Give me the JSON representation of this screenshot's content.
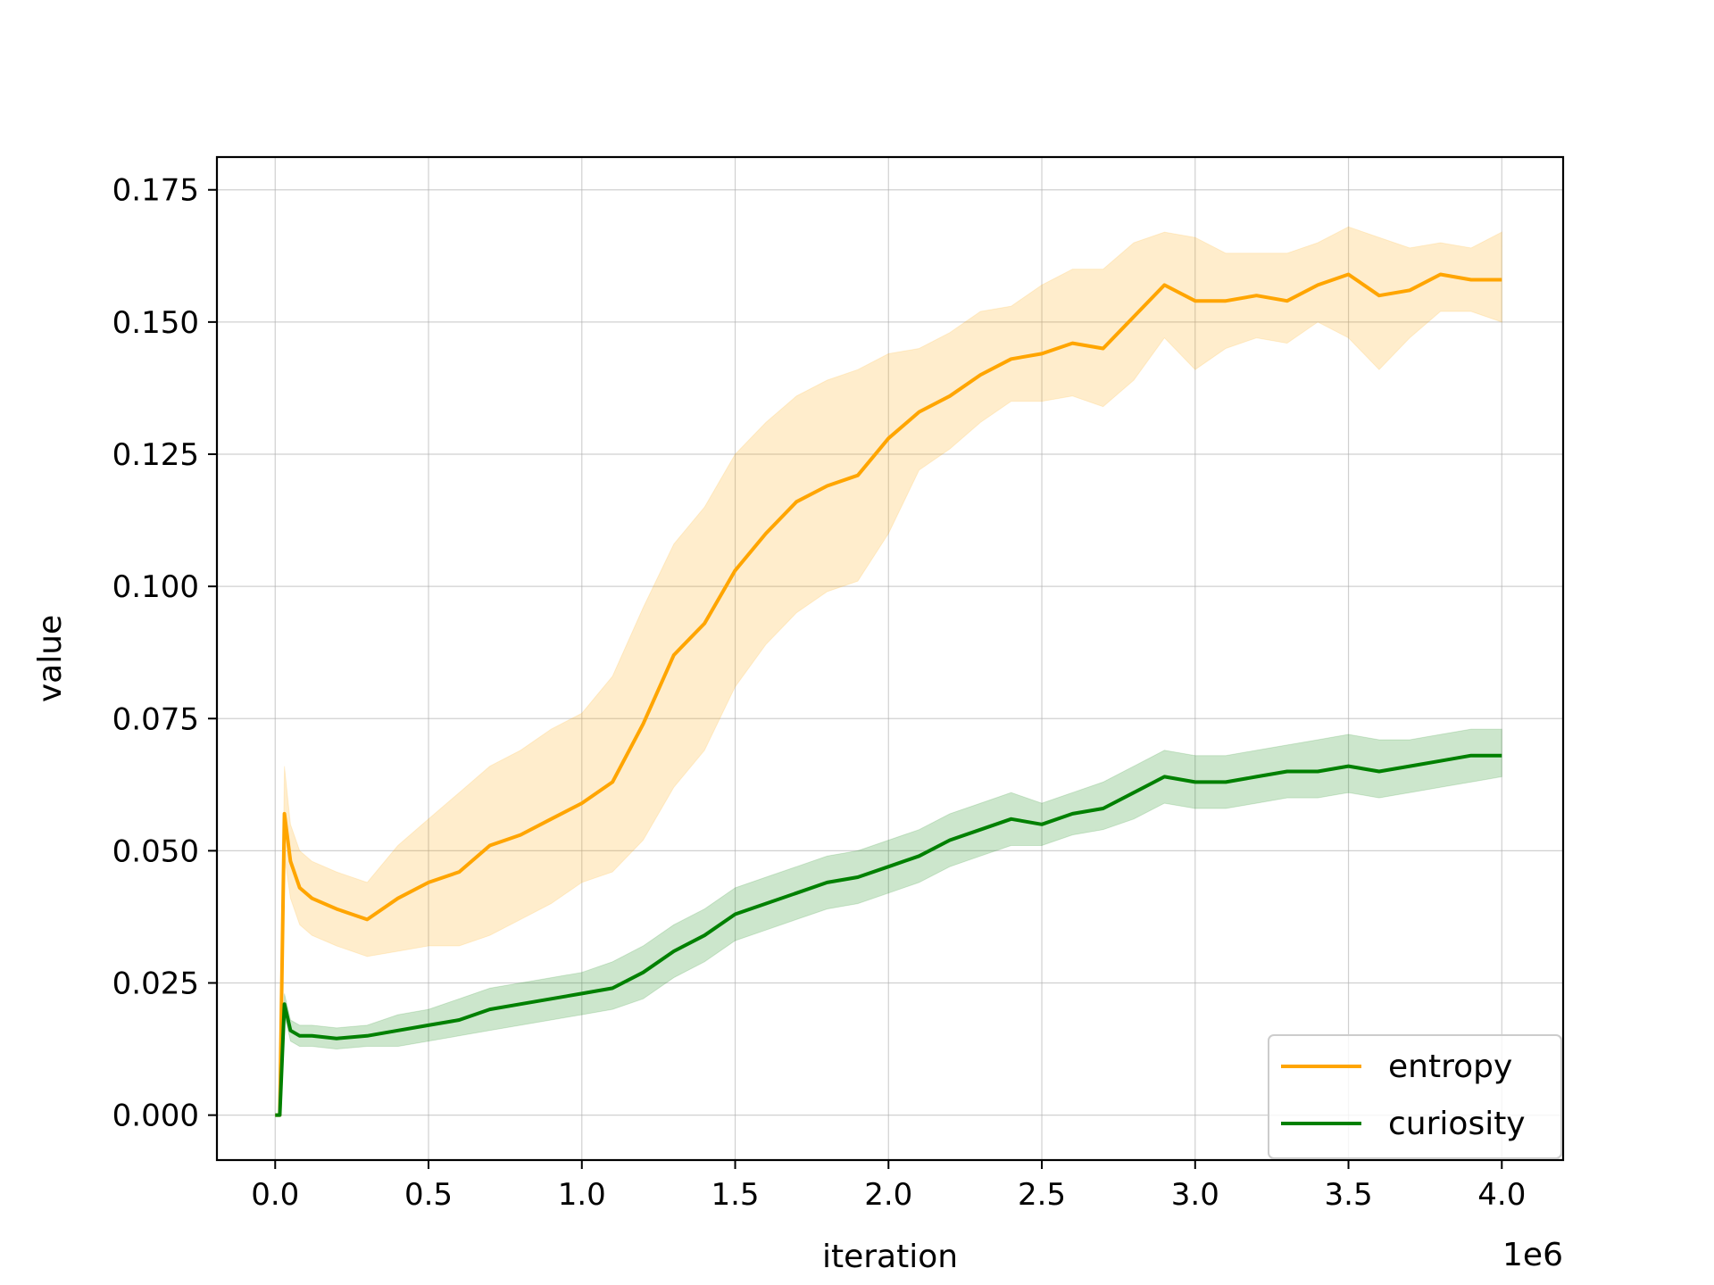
{
  "chart_data": {
    "type": "line",
    "title": "",
    "xlabel": "iteration",
    "ylabel": "value",
    "x_offset_label": "1e6",
    "xlim": [
      -0.19,
      4.2
    ],
    "ylim": [
      -0.0085,
      0.1812
    ],
    "xticks": [
      0.0,
      0.5,
      1.0,
      1.5,
      2.0,
      2.5,
      3.0,
      3.5,
      4.0
    ],
    "xtick_labels": [
      "0.0",
      "0.5",
      "1.0",
      "1.5",
      "2.0",
      "2.5",
      "3.0",
      "3.5",
      "4.0"
    ],
    "yticks": [
      0.0,
      0.025,
      0.05,
      0.075,
      0.1,
      0.125,
      0.15,
      0.175
    ],
    "ytick_labels": [
      "0.000",
      "0.025",
      "0.050",
      "0.075",
      "0.100",
      "0.125",
      "0.150",
      "0.175"
    ],
    "grid": true,
    "legend_position": "lower-right",
    "series": [
      {
        "name": "entropy",
        "color": "#ffa500",
        "band_color": "#ffa500",
        "x": [
          0.0,
          0.015,
          0.03,
          0.05,
          0.08,
          0.12,
          0.2,
          0.3,
          0.4,
          0.5,
          0.6,
          0.7,
          0.8,
          0.9,
          1.0,
          1.1,
          1.2,
          1.3,
          1.4,
          1.5,
          1.6,
          1.7,
          1.8,
          1.9,
          2.0,
          2.1,
          2.2,
          2.3,
          2.4,
          2.5,
          2.6,
          2.7,
          2.8,
          2.9,
          3.0,
          3.1,
          3.2,
          3.3,
          3.4,
          3.5,
          3.6,
          3.7,
          3.8,
          3.9,
          4.0
        ],
        "mean": [
          0.0,
          0.0,
          0.057,
          0.048,
          0.043,
          0.041,
          0.039,
          0.037,
          0.041,
          0.044,
          0.046,
          0.051,
          0.053,
          0.056,
          0.059,
          0.063,
          0.074,
          0.087,
          0.093,
          0.103,
          0.11,
          0.116,
          0.119,
          0.121,
          0.128,
          0.133,
          0.136,
          0.14,
          0.143,
          0.144,
          0.146,
          0.145,
          0.151,
          0.157,
          0.154,
          0.154,
          0.155,
          0.154,
          0.157,
          0.159,
          0.155,
          0.156,
          0.159,
          0.158,
          0.158
        ],
        "upper": [
          0.0,
          0.0,
          0.066,
          0.055,
          0.05,
          0.048,
          0.046,
          0.044,
          0.051,
          0.056,
          0.061,
          0.066,
          0.069,
          0.073,
          0.076,
          0.083,
          0.096,
          0.108,
          0.115,
          0.125,
          0.131,
          0.136,
          0.139,
          0.141,
          0.144,
          0.145,
          0.148,
          0.152,
          0.153,
          0.157,
          0.16,
          0.16,
          0.165,
          0.167,
          0.166,
          0.163,
          0.163,
          0.163,
          0.165,
          0.168,
          0.166,
          0.164,
          0.165,
          0.164,
          0.167
        ],
        "lower": [
          0.0,
          0.0,
          0.049,
          0.041,
          0.036,
          0.034,
          0.032,
          0.03,
          0.031,
          0.032,
          0.032,
          0.034,
          0.037,
          0.04,
          0.044,
          0.046,
          0.052,
          0.062,
          0.069,
          0.081,
          0.089,
          0.095,
          0.099,
          0.101,
          0.11,
          0.122,
          0.126,
          0.131,
          0.135,
          0.135,
          0.136,
          0.134,
          0.139,
          0.147,
          0.141,
          0.145,
          0.147,
          0.146,
          0.15,
          0.147,
          0.141,
          0.147,
          0.152,
          0.152,
          0.15
        ]
      },
      {
        "name": "curiosity",
        "color": "#008000",
        "band_color": "#008000",
        "x": [
          0.0,
          0.015,
          0.03,
          0.05,
          0.08,
          0.12,
          0.2,
          0.3,
          0.4,
          0.5,
          0.6,
          0.7,
          0.8,
          0.9,
          1.0,
          1.1,
          1.2,
          1.3,
          1.4,
          1.5,
          1.6,
          1.7,
          1.8,
          1.9,
          2.0,
          2.1,
          2.2,
          2.3,
          2.4,
          2.5,
          2.6,
          2.7,
          2.8,
          2.9,
          3.0,
          3.1,
          3.2,
          3.3,
          3.4,
          3.5,
          3.6,
          3.7,
          3.8,
          3.9,
          4.0
        ],
        "mean": [
          0.0,
          0.0,
          0.021,
          0.016,
          0.015,
          0.015,
          0.0145,
          0.015,
          0.016,
          0.017,
          0.018,
          0.02,
          0.021,
          0.022,
          0.023,
          0.024,
          0.027,
          0.031,
          0.034,
          0.038,
          0.04,
          0.042,
          0.044,
          0.045,
          0.047,
          0.049,
          0.052,
          0.054,
          0.056,
          0.055,
          0.057,
          0.058,
          0.061,
          0.064,
          0.063,
          0.063,
          0.064,
          0.065,
          0.065,
          0.066,
          0.065,
          0.066,
          0.067,
          0.068,
          0.068
        ],
        "upper": [
          0.0,
          0.0,
          0.023,
          0.018,
          0.017,
          0.017,
          0.0165,
          0.017,
          0.019,
          0.02,
          0.022,
          0.024,
          0.025,
          0.026,
          0.027,
          0.029,
          0.032,
          0.036,
          0.039,
          0.043,
          0.045,
          0.047,
          0.049,
          0.05,
          0.052,
          0.054,
          0.057,
          0.059,
          0.061,
          0.059,
          0.061,
          0.063,
          0.066,
          0.069,
          0.068,
          0.068,
          0.069,
          0.07,
          0.071,
          0.072,
          0.071,
          0.071,
          0.072,
          0.073,
          0.073
        ],
        "lower": [
          0.0,
          0.0,
          0.019,
          0.014,
          0.013,
          0.013,
          0.0125,
          0.013,
          0.013,
          0.014,
          0.015,
          0.016,
          0.017,
          0.018,
          0.019,
          0.02,
          0.022,
          0.026,
          0.029,
          0.033,
          0.035,
          0.037,
          0.039,
          0.04,
          0.042,
          0.044,
          0.047,
          0.049,
          0.051,
          0.051,
          0.053,
          0.054,
          0.056,
          0.059,
          0.058,
          0.058,
          0.059,
          0.06,
          0.06,
          0.061,
          0.06,
          0.061,
          0.062,
          0.063,
          0.064
        ]
      }
    ]
  }
}
